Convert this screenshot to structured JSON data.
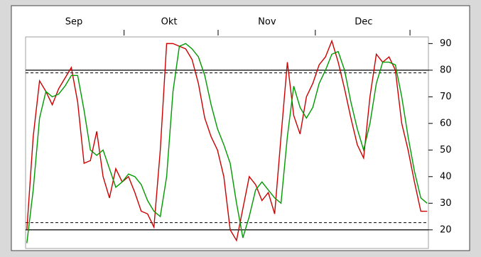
{
  "chart_data": {
    "type": "line",
    "x": [
      0,
      1,
      2,
      3,
      4,
      5,
      6,
      7,
      8,
      9,
      10,
      11,
      12,
      13,
      14,
      15,
      16,
      17,
      18,
      19,
      20,
      21,
      22,
      23,
      24,
      25,
      26,
      27,
      28,
      29,
      30,
      31,
      32,
      33,
      34,
      35,
      36,
      37,
      38,
      39,
      40,
      41,
      42,
      43,
      44,
      45,
      46,
      47,
      48,
      49,
      50,
      51,
      52,
      53,
      54,
      55,
      56,
      57,
      58,
      59,
      60,
      61,
      62,
      63
    ],
    "series": [
      {
        "color": "#cc0000",
        "values": [
          20,
          55,
          76,
          72,
          67,
          73,
          77,
          81,
          68,
          45,
          46,
          57,
          40,
          32,
          43,
          38,
          40,
          34,
          27,
          26,
          21,
          50,
          90,
          90,
          89,
          88,
          84,
          75,
          62,
          55,
          50,
          40,
          20,
          16,
          28,
          40,
          37,
          31,
          34,
          26,
          55,
          83,
          63,
          56,
          70,
          75,
          82,
          85,
          91,
          83,
          73,
          62,
          52,
          47,
          70,
          86,
          83,
          85,
          80,
          60,
          50,
          38,
          27,
          27
        ]
      },
      {
        "color": "#009900",
        "values": [
          15,
          35,
          62,
          72,
          70,
          71,
          74,
          78,
          78,
          65,
          50,
          48,
          50,
          43,
          36,
          38,
          41,
          40,
          37,
          31,
          27,
          25,
          40,
          72,
          89,
          90,
          88,
          85,
          78,
          67,
          58,
          52,
          45,
          30,
          17,
          25,
          35,
          38,
          35,
          32,
          30,
          55,
          74,
          66,
          62,
          66,
          75,
          80,
          86,
          87,
          80,
          68,
          58,
          50,
          60,
          75,
          83,
          83,
          82,
          70,
          55,
          42,
          32,
          30
        ]
      }
    ],
    "xlim": [
      -0.2,
      63.2
    ],
    "xticks": [
      {
        "value": 7.4,
        "label": "Sep"
      },
      {
        "value": 22.4,
        "label": "Okt"
      },
      {
        "value": 37.8,
        "label": "Nov"
      },
      {
        "value": 53,
        "label": "Dec"
      }
    ],
    "xtick_marks": [
      15.3,
      30.1,
      45.4,
      60.3
    ],
    "ylim": [
      13,
      92.5
    ],
    "yticks": [
      20,
      30,
      40,
      50,
      60,
      70,
      80,
      90
    ],
    "solid_lines": [
      80,
      20
    ],
    "dashed_lines": [
      79,
      22.7
    ]
  }
}
